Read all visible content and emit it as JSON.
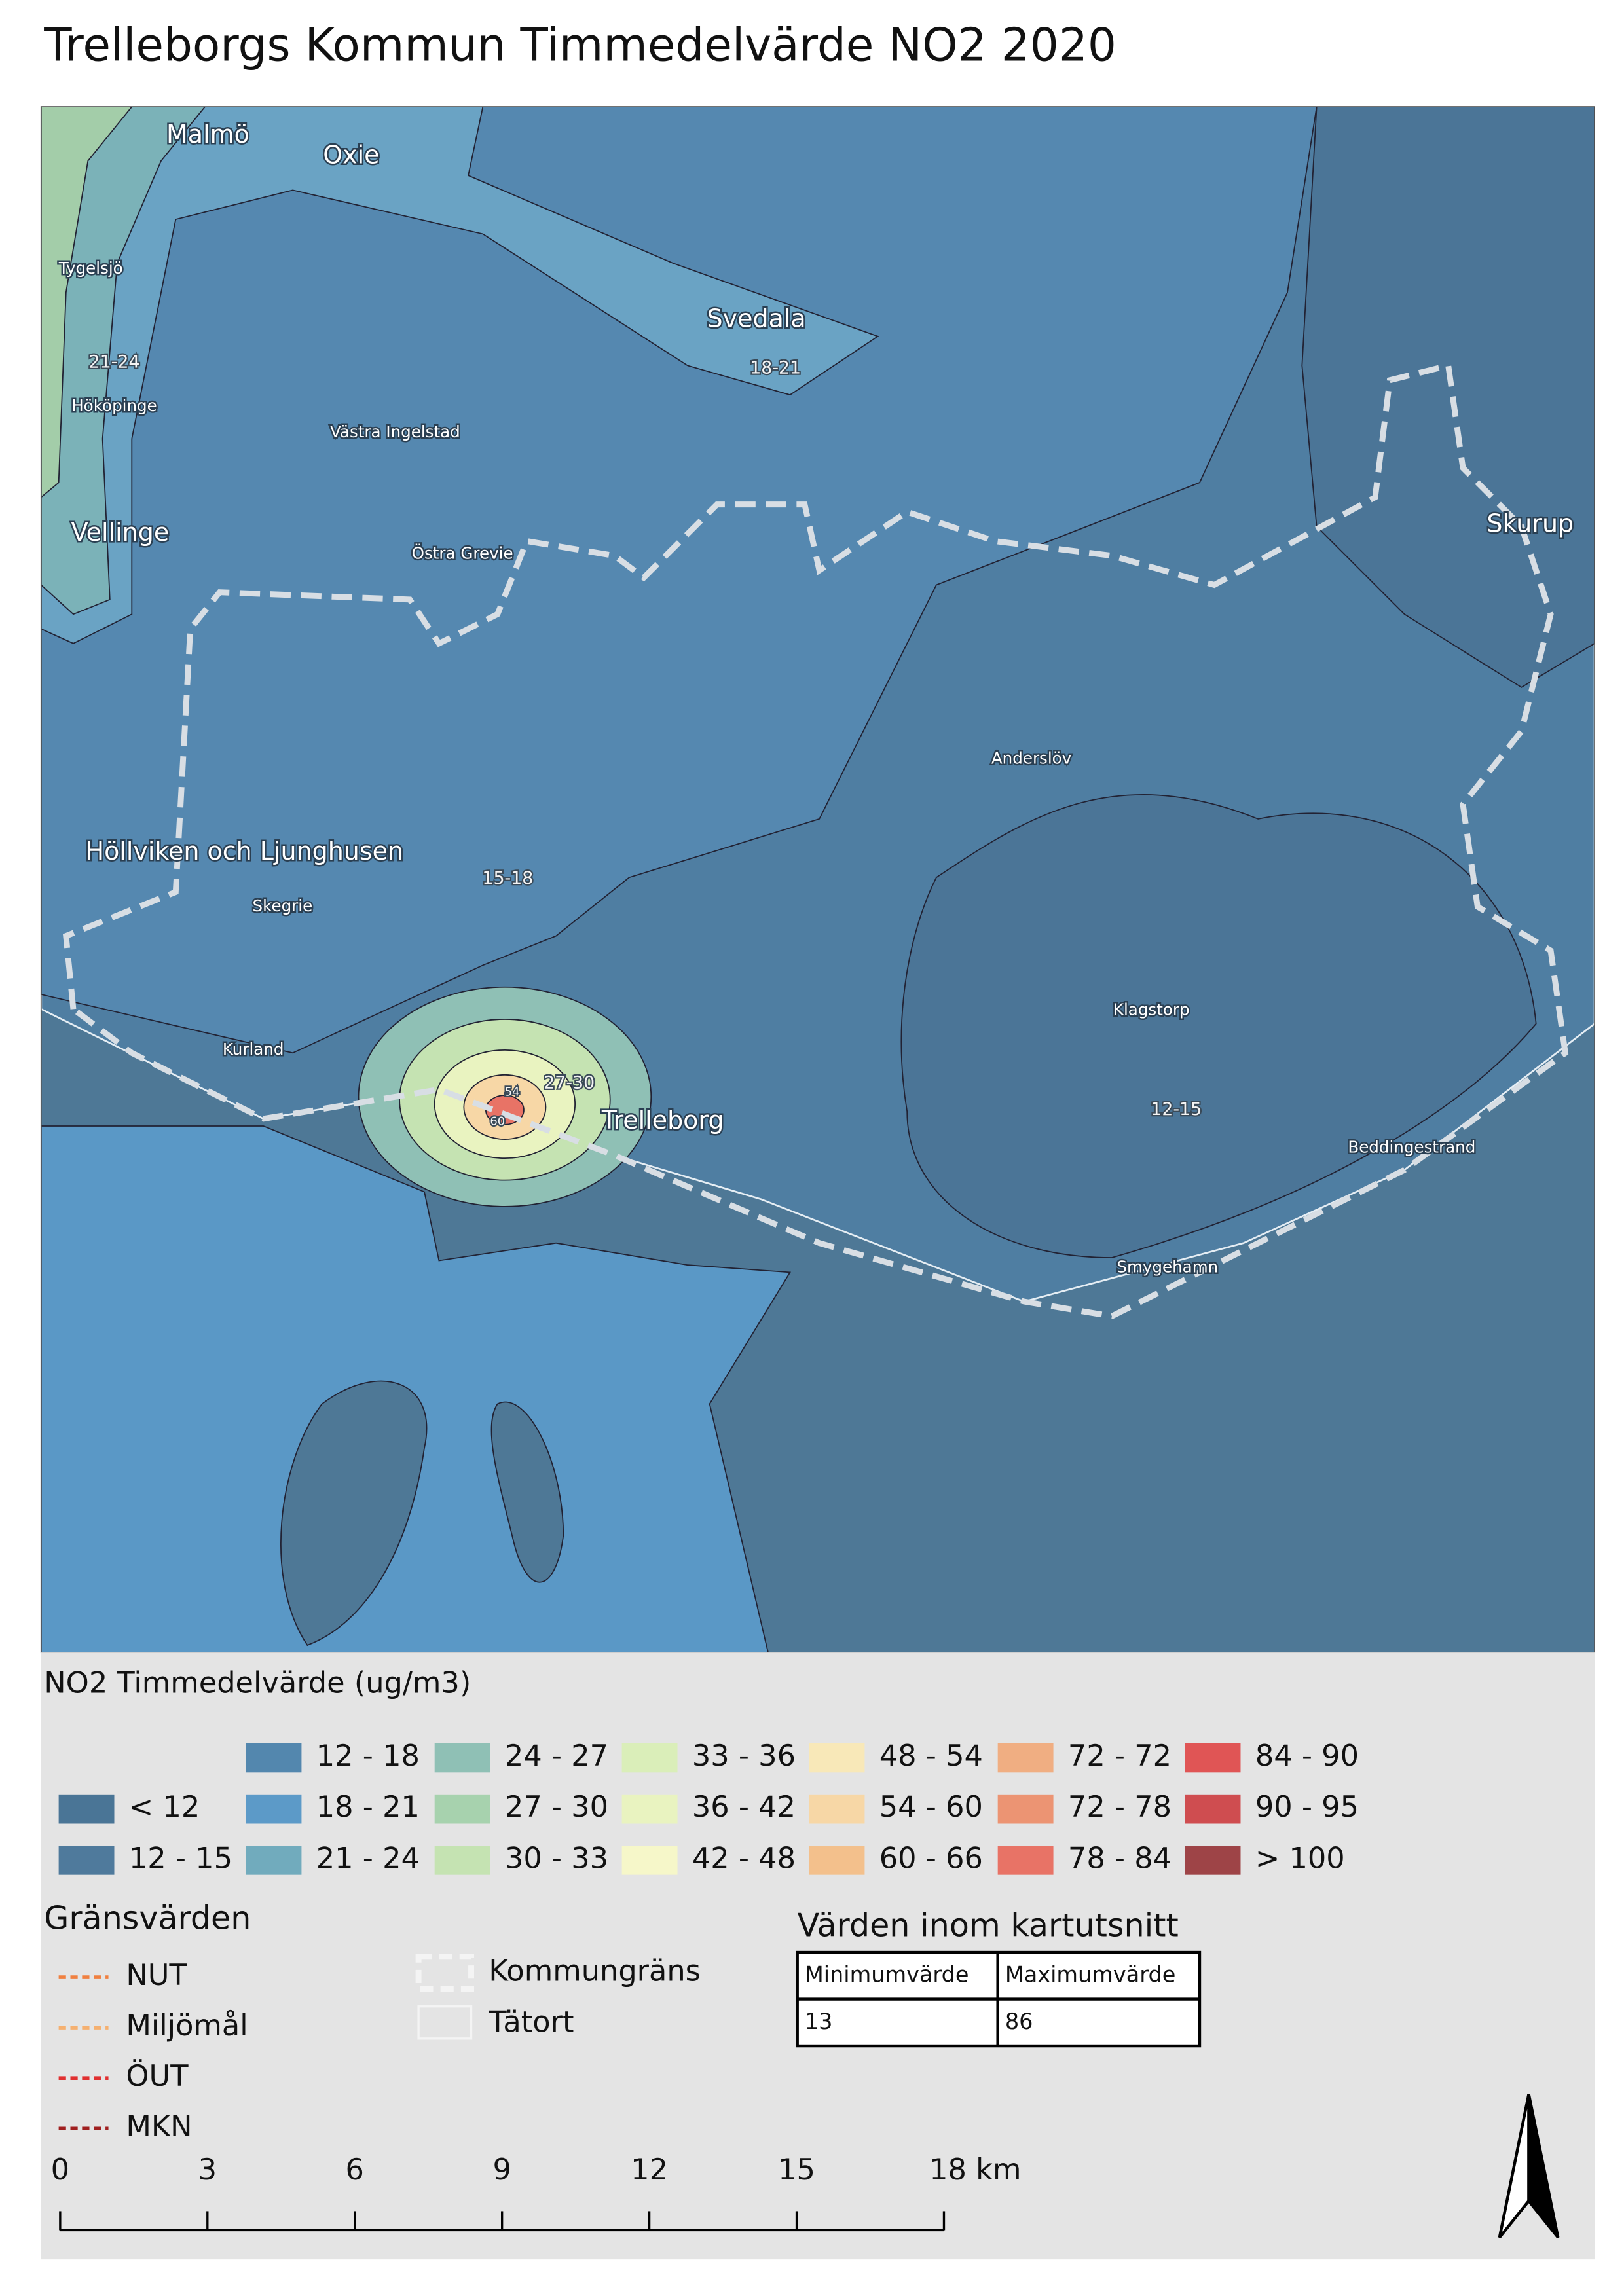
{
  "title": "Trelleborgs Kommun Timmedelvärde NO2 2020",
  "map": {
    "places": [
      "Malmö",
      "Oxie",
      "Tygelsjö",
      "Svedala",
      "Hököpinge",
      "Västra Ingelstad",
      "Skurup",
      "Vellinge",
      "Östra Grevie",
      "Anderslöv",
      "Höllviken och Ljunghusen",
      "Skegrie",
      "Klagstorp",
      "Kurland",
      "Trelleborg",
      "Beddingestrand",
      "Smygehamn"
    ],
    "contour_labels": [
      "21-24",
      "18-21",
      "15-18",
      "27-30",
      "12-15",
      "54",
      "60"
    ]
  },
  "legend": {
    "title": "NO2 Timmedelvärde (ug/m3)",
    "classes": [
      {
        "label": "< 12",
        "color": "#4a7596"
      },
      {
        "label": "12 - 15",
        "color": "#4f7a9c"
      },
      {
        "label": "12 - 18",
        "color": "#5387ae"
      },
      {
        "label": "18 - 21",
        "color": "#5c9ac8"
      },
      {
        "label": "21 - 24",
        "color": "#71abbd"
      },
      {
        "label": "24 - 27",
        "color": "#8fc0b5"
      },
      {
        "label": "27 - 30",
        "color": "#a7d2ae"
      },
      {
        "label": "30 - 33",
        "color": "#c5e3b2"
      },
      {
        "label": "33 - 36",
        "color": "#daeeb9"
      },
      {
        "label": "36 - 42",
        "color": "#e9f3c0"
      },
      {
        "label": "42 - 48",
        "color": "#f6f7c9"
      },
      {
        "label": "48 - 54",
        "color": "#f8e8b8"
      },
      {
        "label": "54 - 60",
        "color": "#f7d7a6"
      },
      {
        "label": "60 - 66",
        "color": "#f3c08c"
      },
      {
        "label": "72 - 72",
        "color": "#f0ae82"
      },
      {
        "label": "72 - 78",
        "color": "#ec9473"
      },
      {
        "label": "78 - 84",
        "color": "#e87366"
      },
      {
        "label": "84 - 90",
        "color": "#e05555"
      },
      {
        "label": "90 - 95",
        "color": "#cf4d50"
      },
      {
        "label": "> 100",
        "color": "#9e4447"
      }
    ]
  },
  "limits": {
    "title": "Gränsvärden",
    "items": [
      {
        "label": "NUT",
        "color": "#f08040"
      },
      {
        "label": "Miljömål",
        "color": "#f5b070"
      },
      {
        "label": "ÖUT",
        "color": "#e03030"
      },
      {
        "label": "MKN",
        "color": "#a02020"
      }
    ]
  },
  "boundaries": [
    "Kommungräns",
    "Tätort"
  ],
  "table": {
    "title": "Värden inom kartutsnitt",
    "header": [
      "Minimumvärde",
      "Maximumvärde"
    ],
    "rows": [
      [
        13,
        86
      ]
    ]
  },
  "scale_bar": [
    "0",
    "3",
    "6",
    "9",
    "12",
    "15",
    "18 km"
  ]
}
